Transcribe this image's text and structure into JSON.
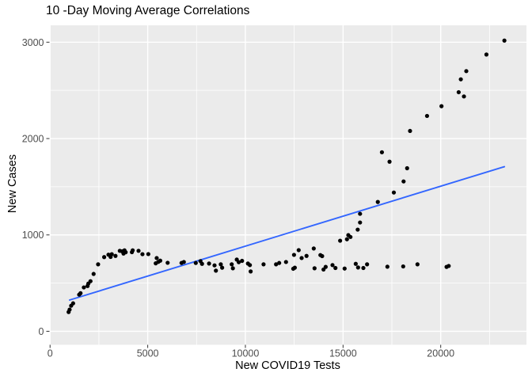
{
  "chart_data": {
    "type": "scatter",
    "title": "10 -Day Moving Average Correlations",
    "xlabel": "New COVID19 Tests",
    "ylabel": "New Cases",
    "legend": false,
    "grid": true,
    "panel_bg": "#EBEBEB",
    "grid_color": "#FFFFFF",
    "point_color": "#000000",
    "tick_label_color": "#4d4d4d",
    "x_ticks": [
      0,
      5000,
      10000,
      15000,
      20000
    ],
    "x_minor_ticks": [
      2500,
      7500,
      12500,
      17500,
      22500
    ],
    "y_ticks": [
      0,
      1000,
      2000,
      3000
    ],
    "y_minor_ticks": [
      500,
      1500,
      2500
    ],
    "xlim": [
      -30,
      24390
    ],
    "ylim": [
      -140,
      3175
    ],
    "trend_line": {
      "type": "linear",
      "color": "#3366FF",
      "x1": 1000,
      "y1": 324,
      "x2": 23260,
      "y2": 1708
    },
    "points": [
      [
        950,
        200
      ],
      [
        1000,
        225
      ],
      [
        1080,
        265
      ],
      [
        1180,
        290
      ],
      [
        1490,
        380
      ],
      [
        1560,
        395
      ],
      [
        1730,
        455
      ],
      [
        1920,
        470
      ],
      [
        1960,
        495
      ],
      [
        2070,
        520
      ],
      [
        2230,
        595
      ],
      [
        2460,
        695
      ],
      [
        2770,
        770
      ],
      [
        2990,
        795
      ],
      [
        3100,
        772
      ],
      [
        3160,
        800
      ],
      [
        3350,
        782
      ],
      [
        3570,
        835
      ],
      [
        3690,
        830
      ],
      [
        3760,
        807
      ],
      [
        3810,
        840
      ],
      [
        3870,
        820
      ],
      [
        4190,
        821
      ],
      [
        4230,
        840
      ],
      [
        4530,
        835
      ],
      [
        4730,
        800
      ],
      [
        5030,
        801
      ],
      [
        5410,
        705
      ],
      [
        5460,
        760
      ],
      [
        5540,
        720
      ],
      [
        5640,
        733
      ],
      [
        6020,
        711
      ],
      [
        6730,
        709
      ],
      [
        6850,
        719
      ],
      [
        7460,
        709
      ],
      [
        7700,
        728
      ],
      [
        7780,
        700
      ],
      [
        8140,
        703
      ],
      [
        8420,
        684
      ],
      [
        8490,
        629
      ],
      [
        8740,
        695
      ],
      [
        8810,
        660
      ],
      [
        9300,
        695
      ],
      [
        9360,
        654
      ],
      [
        9560,
        744
      ],
      [
        9660,
        717
      ],
      [
        9830,
        731
      ],
      [
        10130,
        703
      ],
      [
        10230,
        687
      ],
      [
        10270,
        621
      ],
      [
        10930,
        695
      ],
      [
        11570,
        695
      ],
      [
        11730,
        709
      ],
      [
        12080,
        719
      ],
      [
        12450,
        649
      ],
      [
        12530,
        660
      ],
      [
        12490,
        793
      ],
      [
        12730,
        842
      ],
      [
        12880,
        760
      ],
      [
        13130,
        782
      ],
      [
        13500,
        859
      ],
      [
        13540,
        654
      ],
      [
        13840,
        791
      ],
      [
        13930,
        780
      ],
      [
        14000,
        641
      ],
      [
        14110,
        668
      ],
      [
        14460,
        687
      ],
      [
        14610,
        657
      ],
      [
        15080,
        651
      ],
      [
        15650,
        700
      ],
      [
        15770,
        662
      ],
      [
        16040,
        657
      ],
      [
        16230,
        695
      ],
      [
        17270,
        670
      ],
      [
        18080,
        673
      ],
      [
        18810,
        695
      ],
      [
        20300,
        668
      ],
      [
        20410,
        678
      ],
      [
        14850,
        940
      ],
      [
        15200,
        955
      ],
      [
        15270,
        998
      ],
      [
        15380,
        979
      ],
      [
        15750,
        1055
      ],
      [
        15870,
        1129
      ],
      [
        15870,
        1219
      ],
      [
        16780,
        1342
      ],
      [
        17600,
        1440
      ],
      [
        16990,
        1858
      ],
      [
        17380,
        1760
      ],
      [
        18100,
        1555
      ],
      [
        18280,
        1692
      ],
      [
        18430,
        2079
      ],
      [
        19300,
        2235
      ],
      [
        20040,
        2336
      ],
      [
        20920,
        2481
      ],
      [
        21190,
        2437
      ],
      [
        21030,
        2615
      ],
      [
        21310,
        2700
      ],
      [
        22340,
        2872
      ],
      [
        23260,
        3017
      ]
    ]
  }
}
